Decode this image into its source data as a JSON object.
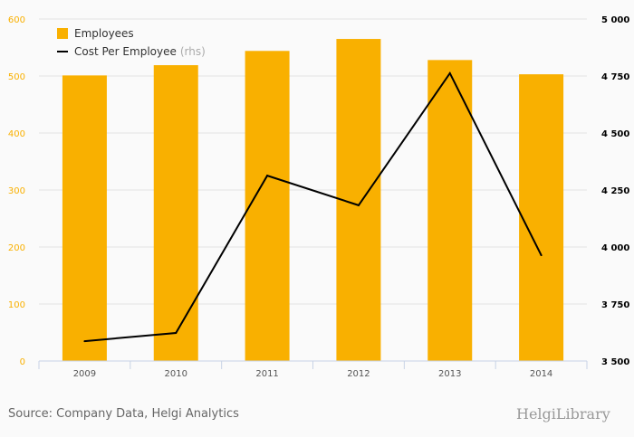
{
  "chart_data": {
    "type": "bar+line",
    "categories": [
      "2009",
      "2010",
      "2011",
      "2012",
      "2013",
      "2014"
    ],
    "series": [
      {
        "name": "Employees",
        "type": "bar",
        "axis": "left",
        "color": "#f9b000",
        "values": [
          501,
          519,
          544,
          565,
          528,
          503
        ]
      },
      {
        "name": "Cost Per Employee",
        "suffix": "(rhs)",
        "type": "line",
        "axis": "right",
        "color": "#000000",
        "values": [
          3587,
          3623,
          4313,
          4183,
          4762,
          3964
        ]
      }
    ],
    "left_axis": {
      "range": [
        0,
        600
      ],
      "ticks": [
        "0",
        "100",
        "200",
        "300",
        "400",
        "500",
        "600"
      ],
      "color": "#f9b000"
    },
    "right_axis": {
      "range": [
        3500,
        5000
      ],
      "ticks": [
        "3 500",
        "3 750",
        "4 000",
        "4 250",
        "4 500",
        "4 750",
        "5 000"
      ]
    },
    "grid": true,
    "legend": "top-left"
  },
  "footer": {
    "source": "Source: Company Data, Helgi Analytics",
    "logo": "HelgiLibrary"
  }
}
